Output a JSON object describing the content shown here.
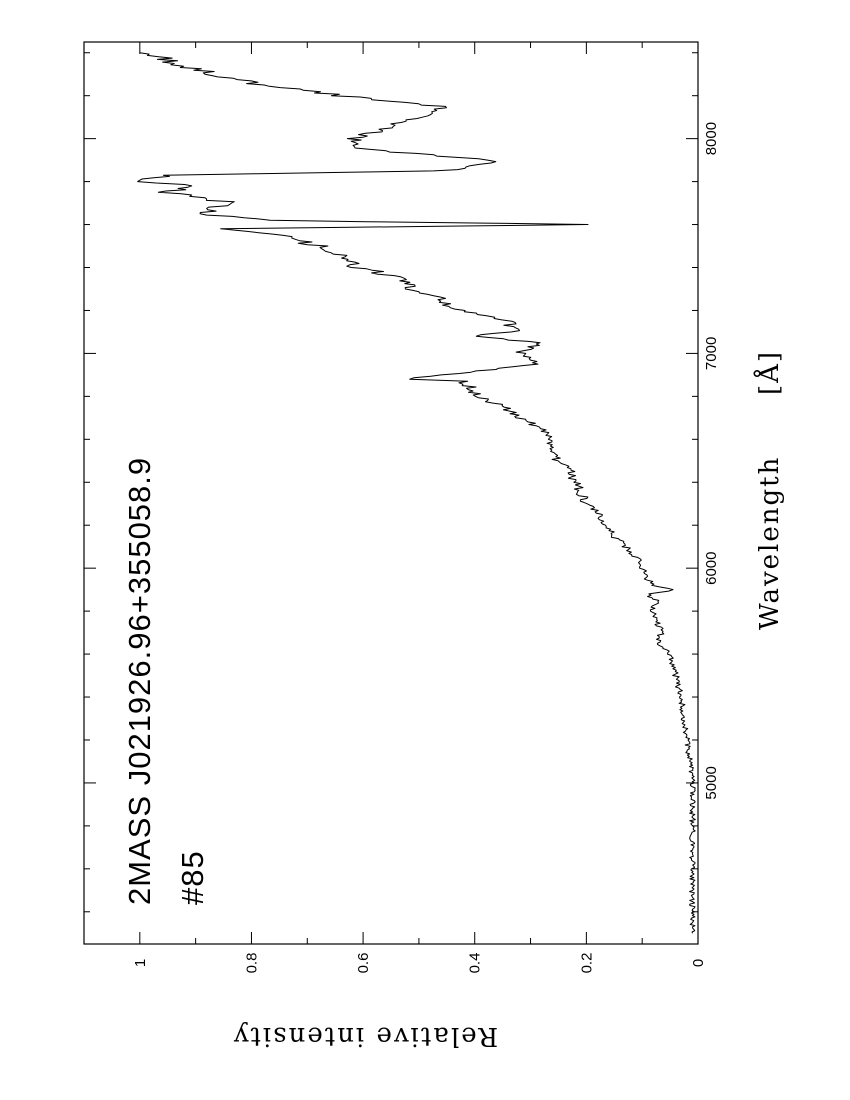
{
  "chart_data": {
    "type": "line",
    "title": "2MASS J021926.96+355058.9",
    "subtitle": "#85",
    "xlabel": "Wavelength",
    "xunit": "[Å]",
    "ylabel": "Relative intensity",
    "xlim": [
      4250,
      8450
    ],
    "ylim": [
      0,
      1.1
    ],
    "x_ticks_major": [
      5000,
      6000,
      7000,
      8000
    ],
    "y_ticks_major": [
      0,
      0.2,
      0.4,
      0.6,
      0.8,
      1
    ],
    "y_tick_labels": [
      "0",
      "0.2",
      "0.4",
      "0.6",
      "0.8",
      "1"
    ],
    "x_tick_labels": [
      "5000",
      "6000",
      "7000",
      "8000"
    ],
    "grid": false,
    "orientation": "rotated 90 degrees clockwise (wavelength increases upward)",
    "series": [
      {
        "x": [
          4300,
          4400,
          4500,
          4600,
          4700,
          4800,
          4900,
          5000,
          5100,
          5200,
          5300,
          5400,
          5500,
          5550,
          5600,
          5620,
          5650,
          5700,
          5750,
          5800,
          5850,
          5880,
          5900,
          5920,
          5950,
          6000,
          6050,
          6100,
          6150,
          6200,
          6250,
          6300,
          6350,
          6400,
          6450,
          6500,
          6550,
          6600,
          6650,
          6700,
          6750,
          6800,
          6850,
          6870,
          6880,
          6900,
          6950,
          7000,
          7050,
          7080,
          7100,
          7150,
          7200,
          7250,
          7300,
          7350,
          7400,
          7450,
          7500,
          7550,
          7580,
          7600,
          7620,
          7650,
          7700,
          7750,
          7780,
          7800,
          7830,
          7850,
          7880,
          7900,
          7950,
          8000,
          8050,
          8100,
          8150,
          8200,
          8250,
          8300,
          8350,
          8400
        ],
        "y": [
          0.01,
          0.01,
          0.01,
          0.01,
          0.01,
          0.01,
          0.01,
          0.01,
          0.015,
          0.02,
          0.025,
          0.03,
          0.04,
          0.045,
          0.05,
          0.06,
          0.075,
          0.065,
          0.075,
          0.08,
          0.075,
          0.09,
          0.04,
          0.08,
          0.09,
          0.1,
          0.11,
          0.13,
          0.15,
          0.17,
          0.18,
          0.2,
          0.21,
          0.22,
          0.23,
          0.25,
          0.27,
          0.26,
          0.28,
          0.32,
          0.35,
          0.4,
          0.41,
          0.42,
          0.52,
          0.45,
          0.29,
          0.32,
          0.28,
          0.41,
          0.33,
          0.34,
          0.43,
          0.46,
          0.51,
          0.53,
          0.61,
          0.63,
          0.68,
          0.75,
          0.87,
          0.2,
          0.78,
          0.9,
          0.83,
          0.96,
          0.89,
          1.0,
          0.94,
          0.46,
          0.38,
          0.37,
          0.6,
          0.62,
          0.56,
          0.5,
          0.46,
          0.64,
          0.78,
          0.87,
          0.93,
          1.0
        ]
      }
    ]
  }
}
